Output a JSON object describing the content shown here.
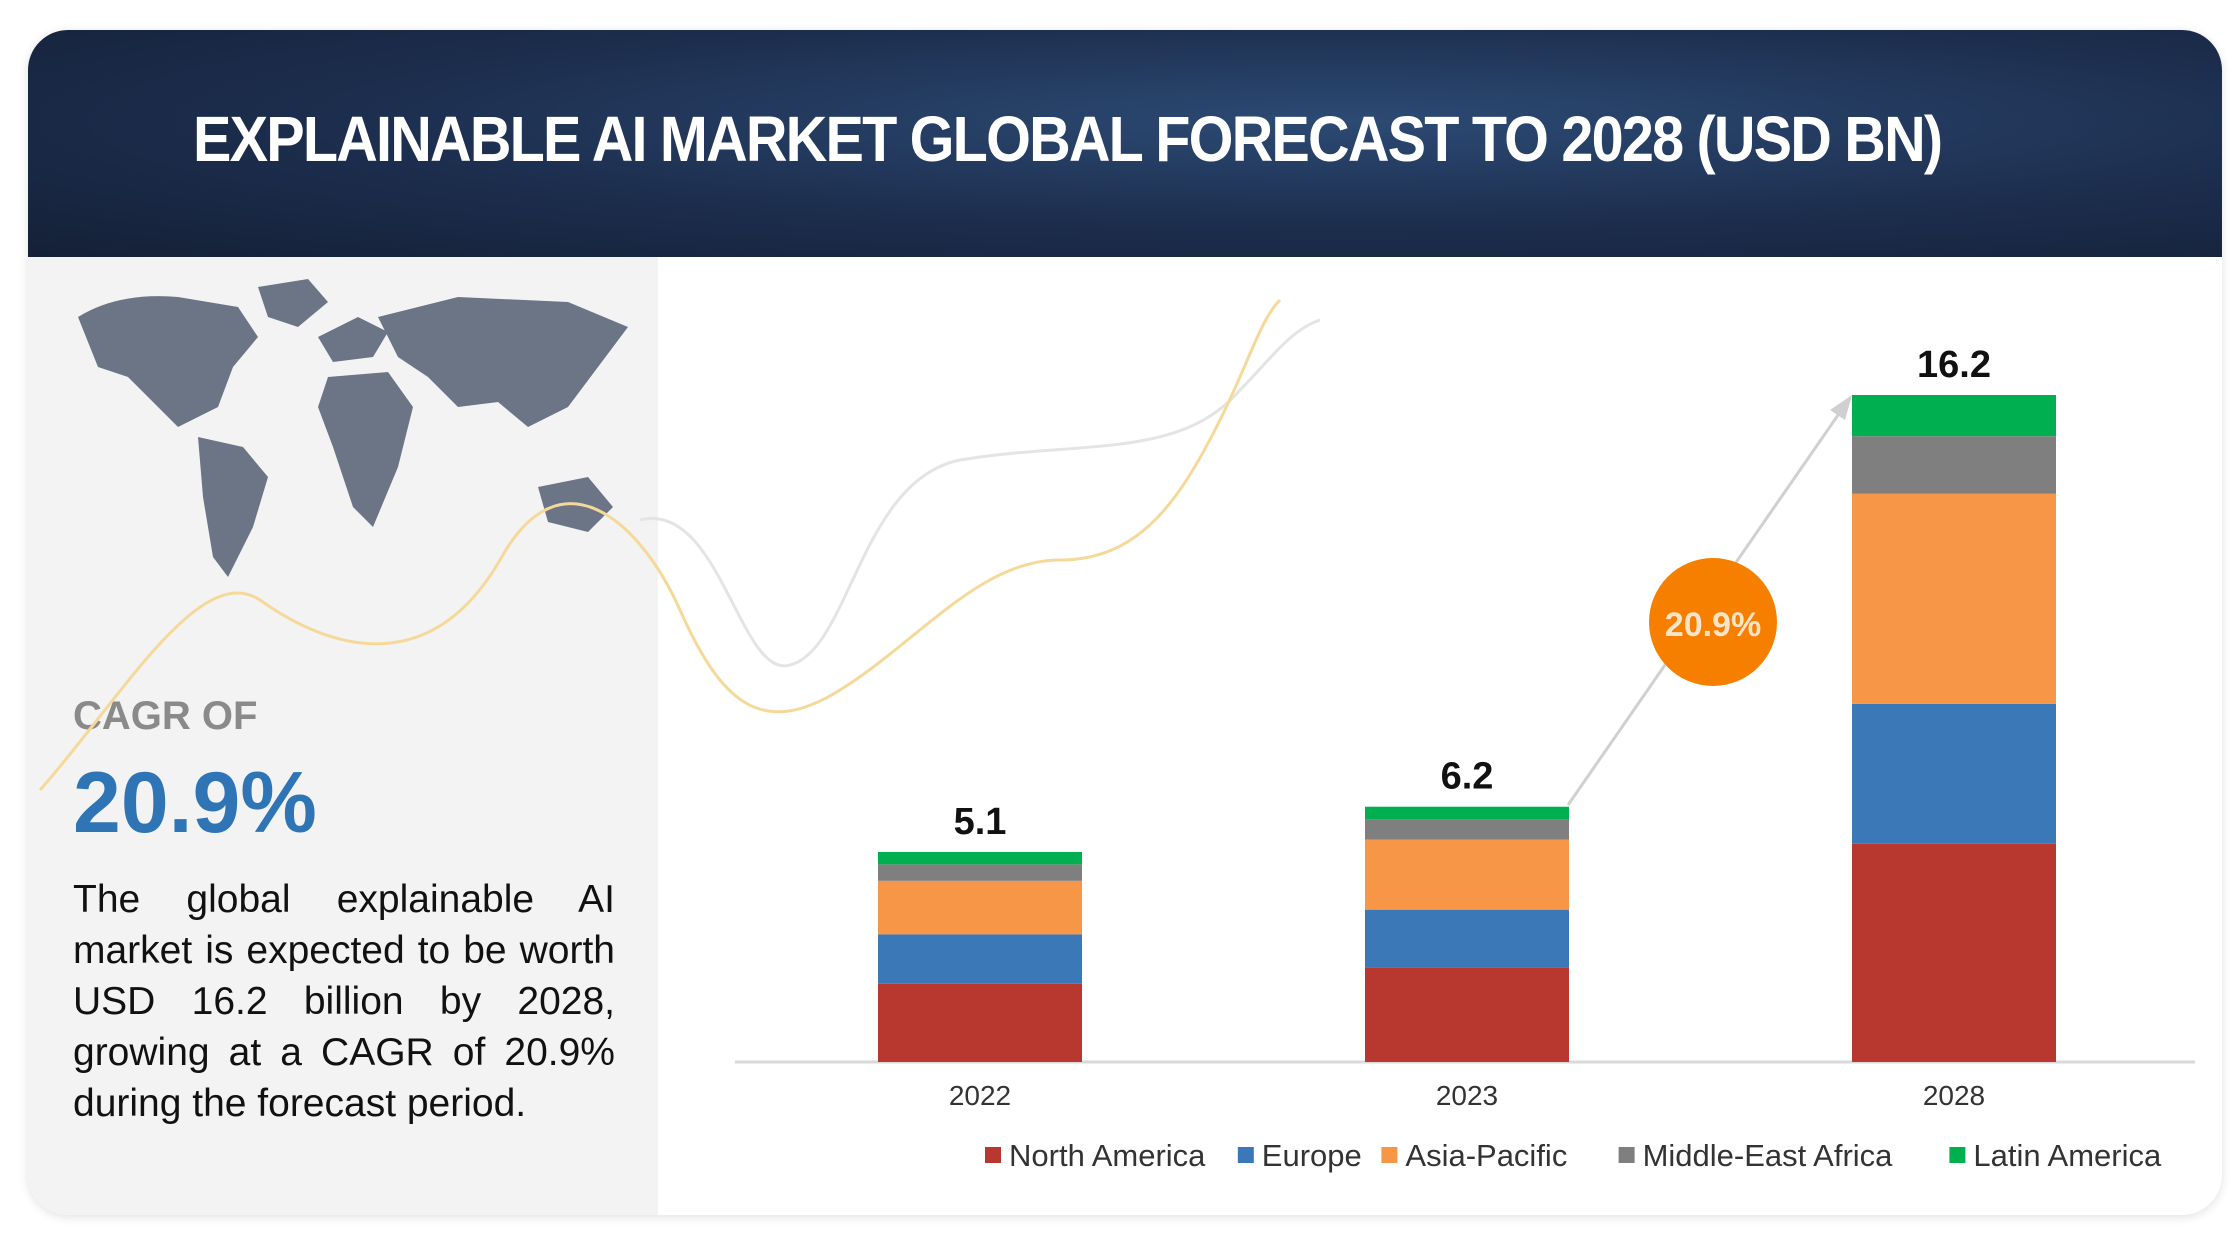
{
  "header": {
    "title": "EXPLAINABLE AI MARKET GLOBAL FORECAST TO 2028 (USD BN)"
  },
  "sidebar": {
    "cagr_label": "CAGR OF",
    "cagr_value": "20.9%",
    "description": "The global explainable AI market is expected to be worth USD 16.2 billion by 2028, growing at a CAGR of 20.9% during the forecast period.",
    "map_icon": "world-map"
  },
  "chart_data": {
    "type": "bar",
    "stacked": true,
    "categories": [
      "2022",
      "2023",
      "2028"
    ],
    "totals": [
      "5.1",
      "6.2",
      "16.2"
    ],
    "series": [
      {
        "name": "North America",
        "color": "#b83830",
        "values": [
          1.9,
          2.3,
          5.3
        ]
      },
      {
        "name": "Europe",
        "color": "#3a78b8",
        "values": [
          1.2,
          1.4,
          3.4
        ]
      },
      {
        "name": "Asia-Pacific",
        "color": "#f79646",
        "values": [
          1.3,
          1.7,
          5.1
        ]
      },
      {
        "name": "Middle-East Africa",
        "color": "#7f7f7f",
        "values": [
          0.4,
          0.5,
          1.4
        ]
      },
      {
        "name": "Latin America",
        "color": "#00b050",
        "values": [
          0.3,
          0.3,
          1.0
        ]
      }
    ],
    "annotation": {
      "text": "20.9%",
      "color": "#f77f00"
    },
    "ylim": [
      0,
      16.2
    ],
    "grid": false,
    "legend": "bottom"
  }
}
